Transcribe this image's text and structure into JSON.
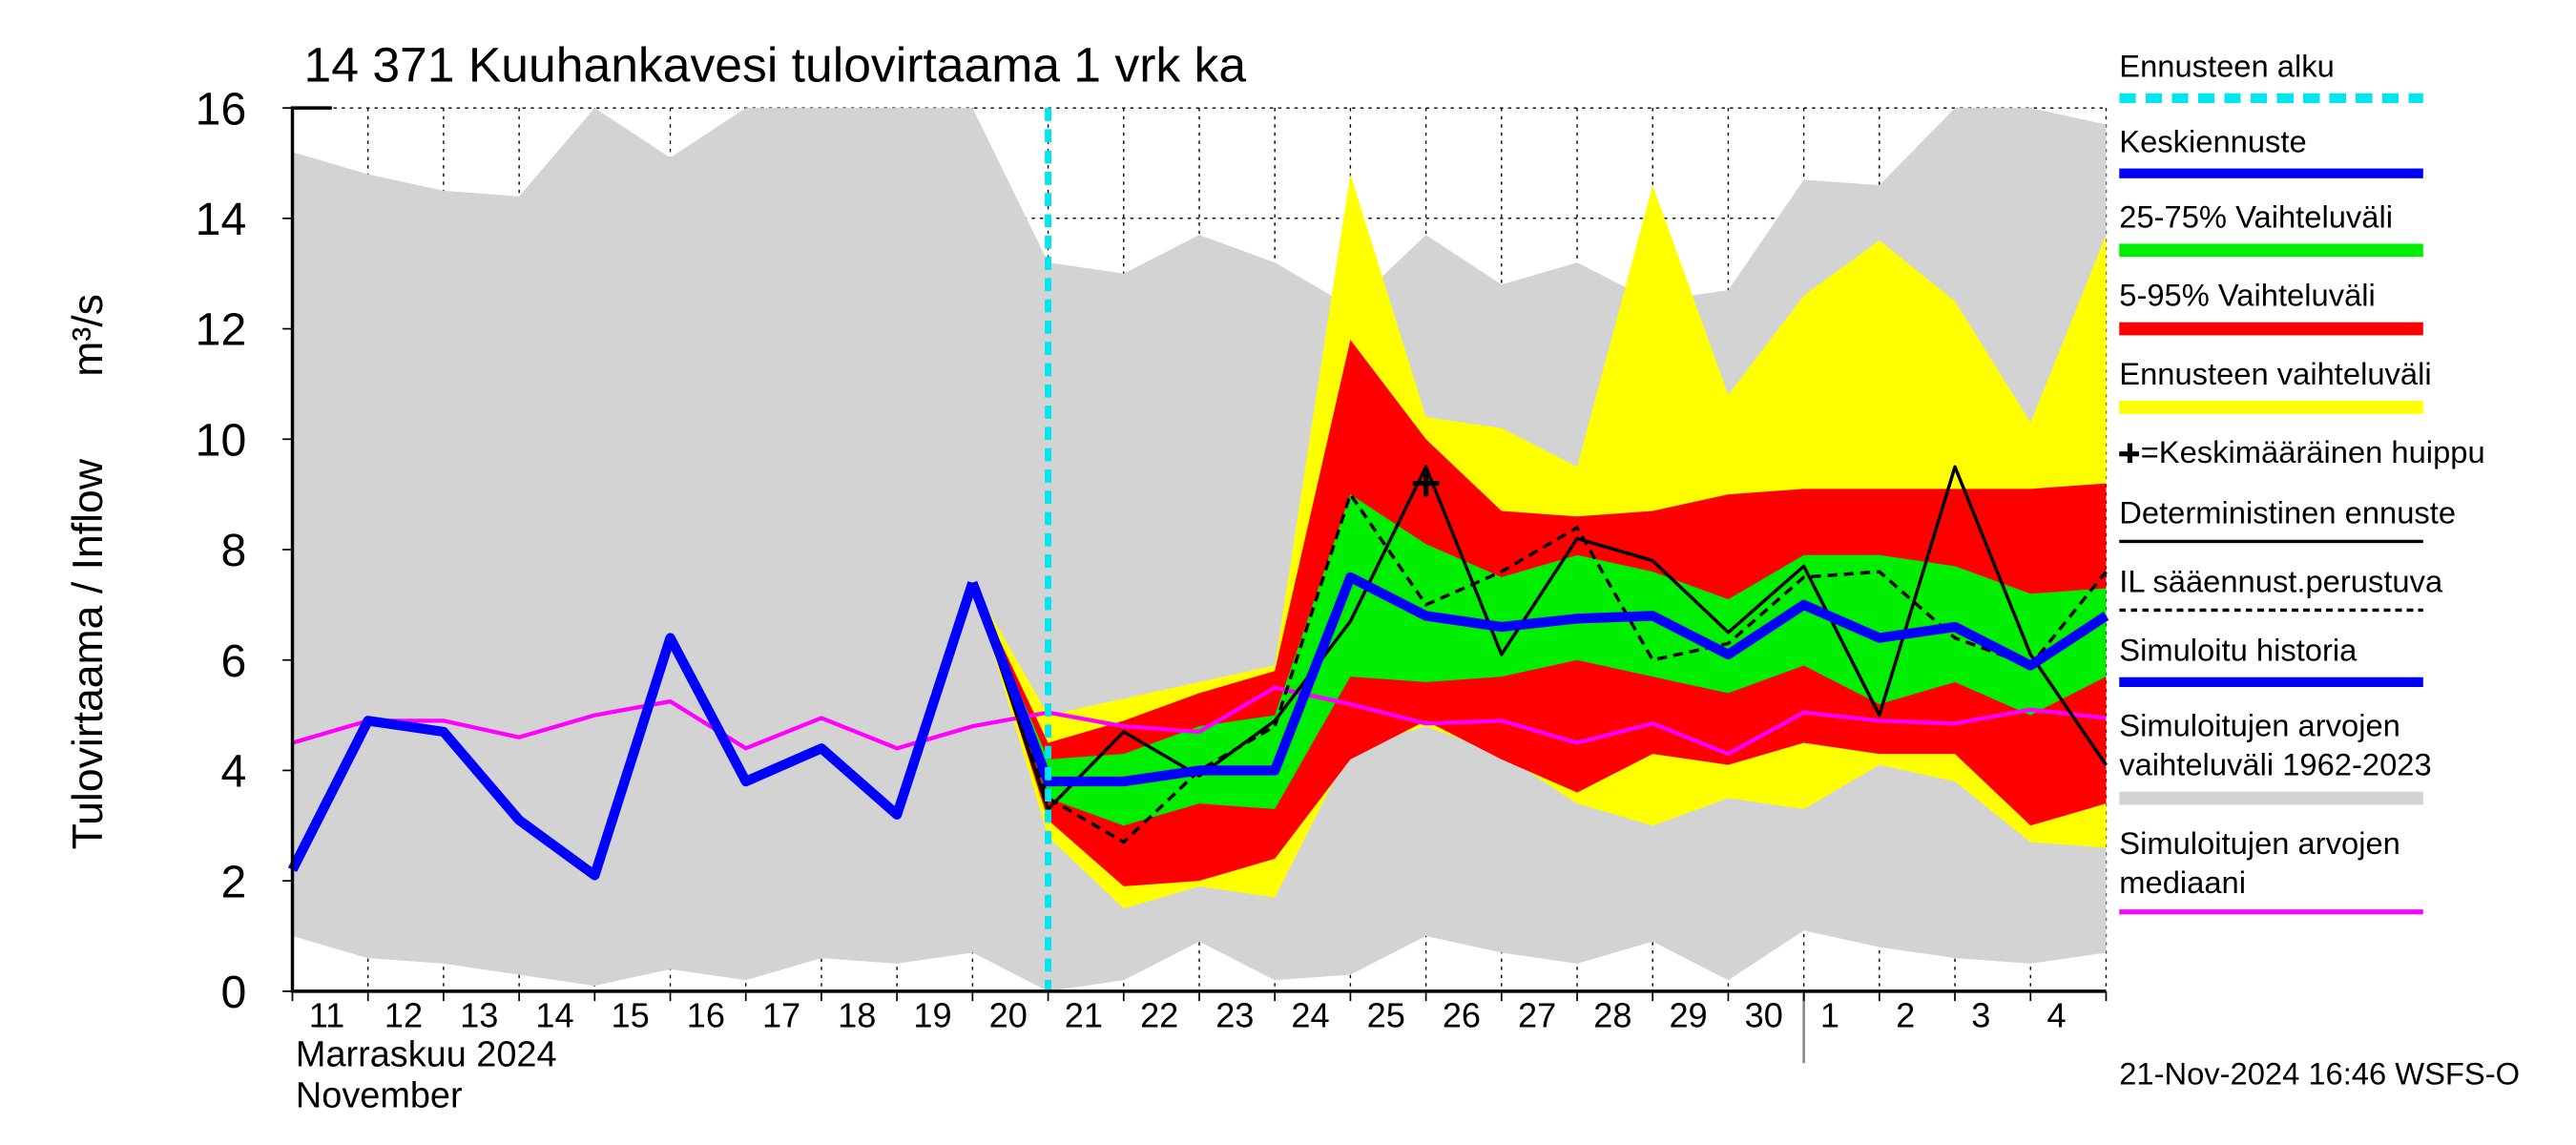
{
  "chart_data": {
    "type": "forecast-band",
    "title": "14 371 Kuuhankavesi tulovirtaama 1 vrk ka",
    "y_label": "Tulovirtaama / Inflow",
    "y_unit": "m³/s",
    "x_label": [
      "Marraskuu 2024",
      "November"
    ],
    "footer": "21-Nov-2024 16:46 WSFS-O",
    "categories": [
      "11",
      "12",
      "13",
      "14",
      "15",
      "16",
      "17",
      "18",
      "19",
      "20",
      "21",
      "22",
      "23",
      "24",
      "25",
      "26",
      "27",
      "28",
      "29",
      "30",
      "1",
      "2",
      "3",
      "4",
      null
    ],
    "ylim": [
      0,
      16
    ],
    "yticks": [
      0,
      2,
      4,
      6,
      8,
      10,
      12,
      14,
      16
    ],
    "grid": true,
    "series": [
      {
        "name": "Ennusteen alku",
        "kind": "vline",
        "color": "#00e5ee",
        "x": "21"
      },
      {
        "name": "Keskiennuste",
        "kind": "line",
        "style": "thick",
        "color": "#0000ff",
        "values": [
          null,
          null,
          null,
          null,
          null,
          null,
          null,
          null,
          null,
          7.4,
          3.8,
          3.8,
          4.0,
          4.0,
          7.5,
          6.8,
          6.6,
          6.75,
          6.8,
          6.1,
          7.0,
          6.4,
          6.6,
          5.9,
          6.8
        ]
      },
      {
        "name": "25-75% Vaihteluväli",
        "kind": "band",
        "color": "#00ee00",
        "low": [
          null,
          null,
          null,
          null,
          null,
          null,
          null,
          null,
          null,
          7.4,
          3.5,
          3.0,
          3.4,
          3.3,
          5.7,
          5.6,
          5.7,
          6.0,
          5.7,
          5.4,
          5.9,
          5.2,
          5.6,
          5.0,
          5.7
        ],
        "high": [
          null,
          null,
          null,
          null,
          null,
          null,
          null,
          null,
          null,
          7.4,
          4.2,
          4.3,
          4.8,
          5.0,
          9.0,
          8.1,
          7.5,
          7.9,
          7.6,
          7.1,
          7.9,
          7.9,
          7.7,
          7.2,
          7.3
        ]
      },
      {
        "name": "5-95% Vaihteluväli",
        "kind": "band",
        "color": "#ff0000",
        "low": [
          null,
          null,
          null,
          null,
          null,
          null,
          null,
          null,
          null,
          7.4,
          3.1,
          1.9,
          2.0,
          2.4,
          4.2,
          4.9,
          4.2,
          3.6,
          4.3,
          4.1,
          4.5,
          4.3,
          4.3,
          3.0,
          3.4
        ],
        "high": [
          null,
          null,
          null,
          null,
          null,
          null,
          null,
          null,
          null,
          7.4,
          4.5,
          4.9,
          5.4,
          5.8,
          11.8,
          10.0,
          8.7,
          8.6,
          8.7,
          9.0,
          9.1,
          9.1,
          9.1,
          9.1,
          9.2
        ]
      },
      {
        "name": "Ennusteen vaihteluväli",
        "kind": "band",
        "color": "#ffff00",
        "low": [
          null,
          null,
          null,
          null,
          null,
          null,
          null,
          null,
          null,
          7.4,
          2.8,
          1.5,
          1.9,
          1.7,
          4.4,
          4.8,
          4.3,
          3.4,
          3.0,
          3.5,
          3.3,
          4.1,
          3.8,
          2.7,
          2.6
        ],
        "high": [
          null,
          null,
          null,
          null,
          null,
          null,
          null,
          null,
          null,
          7.4,
          5.0,
          5.3,
          5.6,
          5.9,
          14.8,
          10.4,
          10.2,
          9.5,
          14.6,
          10.8,
          12.6,
          13.6,
          12.5,
          10.3,
          13.7
        ]
      },
      {
        "name": "=Keskimääräinen huippu",
        "kind": "marker",
        "color": "#000000",
        "values": [
          null,
          null,
          null,
          null,
          null,
          null,
          null,
          null,
          null,
          null,
          null,
          null,
          null,
          null,
          null,
          9.2,
          null,
          null,
          null,
          null,
          null,
          null,
          null,
          null,
          null
        ]
      },
      {
        "name": "Deterministinen ennuste",
        "kind": "line",
        "style": "thin",
        "color": "#000000",
        "values": [
          null,
          null,
          null,
          null,
          null,
          null,
          null,
          null,
          null,
          7.4,
          3.3,
          4.7,
          3.9,
          4.9,
          6.7,
          9.5,
          6.1,
          8.2,
          7.8,
          6.5,
          7.7,
          5.0,
          9.5,
          6.1,
          4.1
        ]
      },
      {
        "name": "IL sääennust.perustuva",
        "kind": "line",
        "style": "dashed",
        "color": "#000000",
        "values": [
          null,
          null,
          null,
          null,
          null,
          null,
          null,
          null,
          null,
          7.4,
          3.5,
          2.7,
          4.0,
          4.8,
          9.0,
          7.0,
          7.6,
          8.4,
          6.0,
          6.3,
          7.5,
          7.6,
          6.4,
          5.9,
          7.6
        ]
      },
      {
        "name": "Simuloitu historia",
        "kind": "line",
        "style": "thick",
        "color": "#0000ff",
        "values": [
          2.2,
          4.9,
          4.7,
          3.1,
          2.1,
          6.4,
          3.8,
          4.4,
          3.2,
          7.4,
          null,
          null,
          null,
          null,
          null,
          null,
          null,
          null,
          null,
          null,
          null,
          null,
          null,
          null,
          null
        ]
      },
      {
        "name": "Simuloitujen arvojen vaihteluväli 1962-2023",
        "kind": "band",
        "color": "#d3d3d3",
        "low": [
          1.0,
          0.6,
          0.5,
          0.3,
          0.1,
          0.4,
          0.2,
          0.6,
          0.5,
          0.7,
          0,
          0.2,
          0.9,
          0.2,
          0.3,
          1.0,
          0.7,
          0.5,
          0.9,
          0.2,
          1.1,
          0.8,
          0.6,
          0.5,
          0.7
        ],
        "high": [
          15.2,
          14.8,
          14.5,
          14.4,
          16,
          15.1,
          16,
          16,
          16,
          16,
          13.2,
          13.0,
          13.7,
          13.2,
          12.4,
          13.7,
          12.8,
          13.2,
          12.5,
          12.7,
          14.7,
          14.6,
          16,
          16,
          15.7
        ]
      },
      {
        "name": "Simuloitujen arvojen mediaani",
        "kind": "line",
        "style": "normal",
        "color": "#ff00ff",
        "values": [
          4.5,
          4.9,
          4.9,
          4.6,
          5.0,
          5.25,
          4.4,
          4.95,
          4.4,
          4.8,
          5.05,
          4.8,
          4.7,
          5.5,
          5.2,
          4.85,
          4.9,
          4.5,
          4.85,
          4.3,
          5.05,
          4.9,
          4.85,
          5.1,
          4.95
        ]
      }
    ]
  }
}
